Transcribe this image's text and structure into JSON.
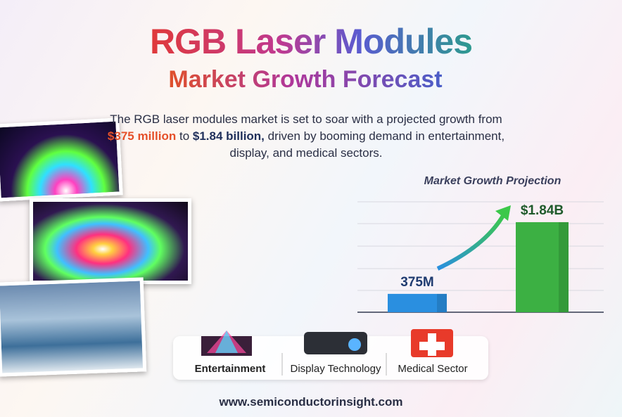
{
  "header": {
    "title": "RGB Laser Modules",
    "subtitle": "Market Growth Forecast"
  },
  "intro": {
    "segments": [
      "The RGB laser modules market is set to soar with a projected growth from ",
      "$375 million",
      " to ",
      "$1.84 billion,",
      " driven by booming demand in entertainment, display, and medical sectors."
    ]
  },
  "chart_data": {
    "type": "bar",
    "title": "Market Growth Projection",
    "categories": [
      null,
      null
    ],
    "values": [
      375,
      1840
    ],
    "value_labels": [
      "375M",
      "$1.84B"
    ],
    "colors": [
      "#2a8fe0",
      "#3cb043"
    ]
  },
  "sectors": [
    "Entertainment",
    "Display Technology",
    "Medical Sector"
  ],
  "footer": {
    "url": "www.semiconductorinsight.com"
  }
}
